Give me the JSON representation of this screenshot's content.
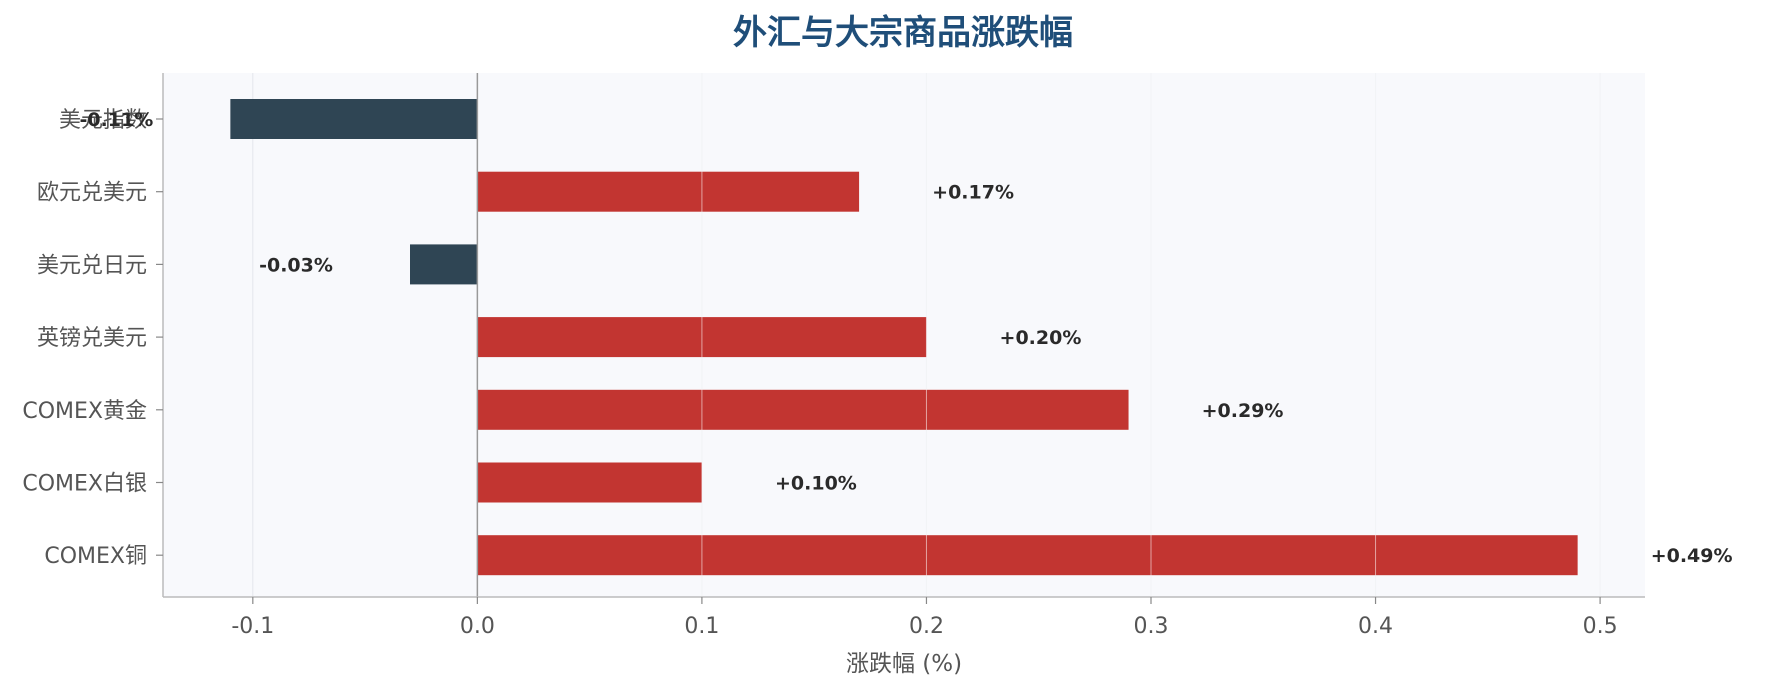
{
  "chart_data": {
    "type": "bar",
    "orientation": "horizontal",
    "title": "外汇与大宗商品涨跌幅",
    "xlabel": "涨跌幅 (%)",
    "ylabel": "",
    "xlim": [
      -0.14,
      0.52
    ],
    "xticks": [
      -0.1,
      0.0,
      0.1,
      0.2,
      0.3,
      0.4,
      0.5
    ],
    "xtick_labels": [
      "-0.1",
      "0.0",
      "0.1",
      "0.2",
      "0.3",
      "0.4",
      "0.5"
    ],
    "categories": [
      "美元指数",
      "欧元兑美元",
      "美元兑日元",
      "英镑兑美元",
      "COMEX黄金",
      "COMEX白银",
      "COMEX铜"
    ],
    "values": [
      -0.11,
      0.17,
      -0.03,
      0.2,
      0.29,
      0.1,
      0.49
    ],
    "value_labels": [
      "-0.11%",
      "+0.17%",
      "-0.03%",
      "+0.20%",
      "+0.29%",
      "+0.10%",
      "+0.49%"
    ],
    "grid": "vertical",
    "colors": {
      "positive": "#c23531",
      "negative": "#2f4554",
      "title": "#1f4e79",
      "plot_background": "#f8f9fc",
      "grid": "#e3e6ec",
      "zero_line": "#999999",
      "axis": "#bbbbbb"
    }
  }
}
